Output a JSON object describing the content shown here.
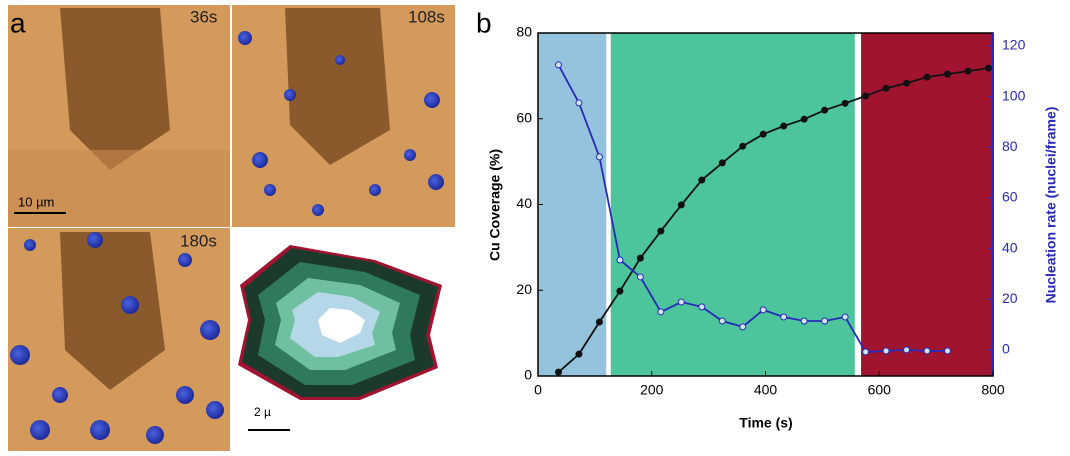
{
  "panel_a": {
    "label": "a",
    "frames": [
      "36s",
      "108s",
      "180s"
    ],
    "scale_bar": "10 µm",
    "inset_scale_bar": "2 µ"
  },
  "chart_data": {
    "type": "line",
    "label": "b",
    "x_label": "Time (s)",
    "y_label": "Cu Coverage (%)",
    "y2_label": "Nucleation rate (nuclei/frame)",
    "x": [
      36,
      72,
      108,
      144,
      180,
      216,
      252,
      288,
      324,
      360,
      396,
      432,
      468,
      504,
      540,
      576,
      612,
      648,
      684,
      720,
      756,
      792
    ],
    "series": [
      {
        "color": "#111111",
        "values": [
          0.9,
          5.1,
          12.6,
          19.8,
          27.5,
          33.8,
          39.9,
          45.7,
          49.7,
          53.6,
          56.4,
          58.3,
          59.9,
          62.0,
          63.6,
          65.3,
          67.1,
          68.3,
          69.7,
          70.4,
          71.1,
          71.8
        ]
      },
      {
        "color": "#2a2ab8",
        "axis": "y2",
        "values": [
          112.5,
          97.5,
          76.2,
          35.5,
          28.8,
          15.0,
          18.9,
          17.0,
          11.4,
          9.1,
          15.8,
          13.0,
          11.4,
          11.4,
          13.0,
          -0.8,
          -0.4,
          0,
          -0.4,
          -0.4,
          null,
          null
        ]
      }
    ],
    "regions": [
      {
        "start": 0,
        "end": 120,
        "color": "#93c3dd"
      },
      {
        "start": 128,
        "end": 557,
        "color": "#4cc49c"
      },
      {
        "start": 568,
        "end": 800,
        "color": "#a01430"
      }
    ],
    "xlim": [
      0,
      800
    ],
    "xticks": [
      0,
      200,
      400,
      600,
      800
    ],
    "ylim": [
      0,
      80
    ],
    "yticks": [
      0,
      20,
      40,
      60,
      80
    ],
    "y2lim": [
      -10.3,
      125.1
    ],
    "y2ticks": [
      0,
      20,
      40,
      60,
      80,
      100,
      120
    ],
    "y2_color": "#2a2ab8"
  }
}
